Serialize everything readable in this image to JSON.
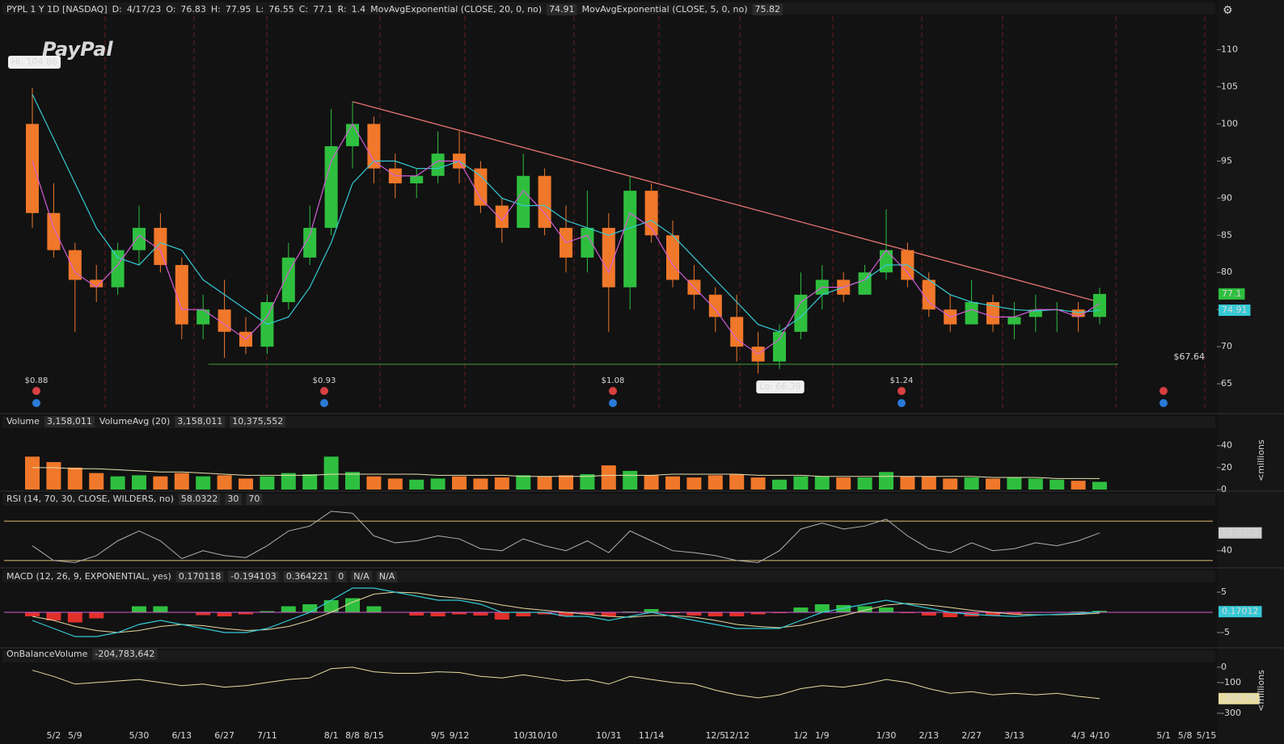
{
  "header": {
    "symbol": "PYPL 1 Y 1D [NASDAQ]",
    "quote": [
      {
        "label": "D:",
        "value": "4/17/23"
      },
      {
        "label": "O:",
        "value": "76.83"
      },
      {
        "label": "H:",
        "value": "77.95"
      },
      {
        "label": "L:",
        "value": "76.55"
      },
      {
        "label": "C:",
        "value": "77.1"
      },
      {
        "label": "R:",
        "value": "1.4"
      }
    ],
    "studies": [
      {
        "name": "MovAvgExponential (CLOSE, 20, 0, no)",
        "value": "74.91"
      },
      {
        "name": "MovAvgExponential (CLOSE, 5, 0, no)",
        "value": "75.82"
      }
    ]
  },
  "chart_data": [
    {
      "type": "candlestick",
      "watermark": "PayPal",
      "categories": [
        null,
        "5/2",
        "5/9",
        null,
        null,
        "5/30",
        null,
        "6/13",
        null,
        "6/27",
        null,
        "7/11",
        null,
        null,
        "8/1",
        "8/8",
        "8/15",
        null,
        null,
        "9/5",
        "9/12",
        null,
        null,
        "10/3",
        "10/10",
        null,
        null,
        "10/31",
        null,
        "11/14",
        null,
        null,
        "12/5",
        "12/12",
        null,
        null,
        "1/2",
        "1/9",
        null,
        null,
        "1/30",
        null,
        "2/13",
        null,
        "2/27",
        null,
        "3/13",
        null,
        null,
        "4/3",
        "4/10",
        null,
        null,
        "5/1",
        "5/8",
        "5/15"
      ],
      "open": [
        100,
        88,
        83,
        79,
        78,
        83,
        86,
        81,
        73,
        75,
        72,
        70,
        76,
        82,
        86,
        97,
        100,
        94,
        92,
        93,
        96,
        94,
        89,
        86,
        93,
        86,
        82,
        86,
        78,
        91,
        85,
        79,
        77,
        74,
        70,
        68,
        72,
        77,
        79,
        77,
        80,
        83,
        79,
        75,
        73,
        76,
        73,
        74,
        75,
        75,
        74,
        null,
        null,
        null,
        null,
        null
      ],
      "high": [
        104.86,
        92,
        84,
        81,
        84,
        89,
        88,
        82,
        77,
        79,
        74,
        77,
        84,
        89,
        102,
        103,
        101,
        96,
        94,
        99,
        99,
        95,
        90,
        96,
        94,
        89,
        91,
        88,
        93,
        92,
        87,
        81,
        78,
        77,
        72,
        73,
        80,
        81,
        80,
        81,
        88.5,
        84,
        80,
        77,
        79,
        77,
        76,
        77,
        76,
        76,
        77.95,
        null,
        null,
        null,
        null,
        null
      ],
      "low": [
        86,
        82,
        72,
        76,
        77,
        81,
        80,
        71,
        71,
        68.5,
        69,
        69,
        75,
        81,
        85,
        94,
        92,
        90,
        90,
        92,
        92,
        88,
        84,
        86,
        85,
        80,
        80,
        72,
        75,
        84,
        78,
        75,
        72,
        68,
        66.39,
        67,
        71,
        75,
        76,
        77,
        79,
        78,
        74,
        72,
        73,
        72,
        71,
        72,
        72,
        72,
        73,
        null,
        null,
        null,
        null,
        null
      ],
      "close": [
        88,
        83,
        79,
        78,
        83,
        86,
        81,
        73,
        75,
        72,
        70,
        76,
        82,
        86,
        97,
        100,
        94,
        92,
        93,
        96,
        94,
        89,
        86,
        93,
        86,
        82,
        86,
        78,
        91,
        85,
        79,
        77,
        74,
        70,
        68,
        72,
        77,
        79,
        77,
        80,
        83,
        79,
        75,
        73,
        76,
        73,
        74,
        75,
        75,
        74,
        77.1,
        null,
        null,
        null,
        null,
        null
      ],
      "up_color": "#2fbf3f",
      "down_color": "#f0782a",
      "series": [
        {
          "color": "#36c9d6",
          "values": [
            104,
            98,
            92,
            86,
            82,
            81,
            84,
            83,
            79,
            77,
            75,
            73,
            74,
            78,
            84,
            92,
            95,
            95,
            94,
            94,
            95,
            93,
            90,
            89,
            89,
            87,
            86,
            85,
            86,
            87,
            85,
            82,
            79,
            76,
            73,
            72,
            74,
            77,
            78,
            79,
            81,
            81,
            79,
            77,
            76,
            75.5,
            75,
            74.8,
            75,
            74.6,
            74.91,
            null,
            null,
            null,
            null,
            null
          ]
        },
        {
          "color": "#d35ed6",
          "values": [
            95,
            86,
            80,
            78,
            81,
            85,
            83,
            75,
            75,
            73,
            71,
            74,
            80,
            85,
            95,
            100,
            95,
            93,
            93,
            95,
            95,
            90,
            87,
            91,
            88,
            84,
            85,
            80,
            88,
            86,
            81,
            78,
            75,
            71,
            69,
            71,
            76,
            78,
            78,
            79,
            83,
            80,
            76,
            74,
            75,
            74,
            74,
            75,
            75,
            74,
            75.82,
            null,
            null,
            null,
            null,
            null
          ]
        }
      ],
      "ylim": [
        61.2,
        114.3
      ],
      "yticks": [
        65,
        70,
        75,
        80,
        85,
        90,
        95,
        100,
        105,
        110
      ],
      "hi_label": "Hi: 104.86",
      "lo_label": "Lo: 66.39",
      "support": {
        "value": 67.64,
        "label": "$67.64",
        "from": "6/27"
      },
      "trendline": {
        "from": "8/8",
        "to": "4/10",
        "values": [
          103,
          76
        ]
      },
      "dividends": [
        "$0.88",
        "$0.93",
        "$1.08",
        "$1.24"
      ]
    },
    {
      "type": "bar",
      "header": [
        "Volume",
        "3,158,011",
        "VolumeAvg (20)",
        "3,158,011",
        "10,375,552"
      ],
      "axis_label": "<millions",
      "values": [
        30,
        25,
        20,
        15,
        12,
        13,
        12,
        15,
        12,
        13,
        10,
        12,
        15,
        14,
        30,
        16,
        12,
        10,
        9,
        10,
        12,
        10,
        11,
        13,
        12,
        13,
        14,
        22,
        17,
        13,
        12,
        11,
        13,
        14,
        11,
        9,
        12,
        12,
        11,
        11,
        16,
        12,
        12,
        10,
        11,
        10,
        11,
        10,
        9,
        8,
        7,
        null,
        null,
        null,
        null,
        null
      ],
      "average": [
        20,
        20,
        19,
        19,
        18,
        17,
        16,
        16,
        15,
        14,
        13,
        13,
        13,
        13,
        14,
        14,
        14,
        14,
        14,
        13,
        13,
        13,
        13,
        12,
        12,
        12,
        12,
        13,
        13,
        13,
        14,
        14,
        14,
        14,
        13,
        13,
        13,
        12,
        12,
        12,
        12,
        12,
        12,
        12,
        12,
        11,
        11,
        11,
        10,
        10,
        10,
        null,
        null,
        null,
        null,
        null
      ],
      "average_color": "#e8e0b0",
      "ylim": [
        0,
        67
      ],
      "yticks": [
        0,
        20,
        40
      ]
    },
    {
      "type": "line",
      "header": [
        "RSI (14, 70, 30, CLOSE, WILDERS, no)",
        "58.0322"
      ],
      "levels": [
        {
          "value": 30,
          "label": "30"
        },
        {
          "value": 70,
          "label": "70"
        }
      ],
      "values": [
        45,
        30,
        28,
        35,
        50,
        60,
        50,
        32,
        40,
        35,
        33,
        45,
        60,
        65,
        80,
        78,
        55,
        48,
        50,
        55,
        52,
        42,
        40,
        52,
        45,
        40,
        50,
        38,
        60,
        50,
        40,
        38,
        35,
        30,
        28,
        40,
        62,
        68,
        62,
        65,
        72,
        55,
        42,
        38,
        48,
        40,
        42,
        48,
        45,
        50,
        58.03,
        null,
        null,
        null,
        null,
        null
      ],
      "color": "#b0b0b0",
      "level_color": "#e0c070",
      "ylim": [
        25,
        84
      ],
      "yticks": [
        40
      ]
    },
    {
      "type": "macd",
      "header": [
        "MACD (12, 26, 9, EXPONENTIAL, yes)",
        "0.170118",
        "-0.194103",
        "0.364221",
        "0",
        "N/A",
        "N/A"
      ],
      "last_label": "0.17012",
      "macd": [
        -2,
        -4,
        -6,
        -6,
        -5,
        -3,
        -2,
        -3,
        -4,
        -5,
        -5,
        -4,
        -2,
        0,
        3,
        6,
        6,
        5,
        4,
        3,
        3,
        2,
        0,
        0,
        0,
        -1,
        -1,
        -2,
        -1,
        0,
        -1,
        -2,
        -3,
        -4,
        -4,
        -4,
        -2,
        0,
        1,
        2,
        3,
        2,
        1,
        0,
        -0.5,
        -0.8,
        -1,
        -0.7,
        -0.5,
        -0.3,
        0.17,
        null,
        null,
        null,
        null,
        null
      ],
      "signal": [
        -1,
        -2,
        -3.5,
        -4.5,
        -5,
        -4.5,
        -3.5,
        -3,
        -3.3,
        -4,
        -4.5,
        -4.3,
        -3.5,
        -2,
        0,
        2.5,
        4.5,
        5,
        4.8,
        4,
        3.5,
        2.8,
        1.8,
        1,
        0.5,
        0,
        -0.5,
        -1,
        -1.2,
        -0.8,
        -0.8,
        -1.2,
        -2,
        -3,
        -3.5,
        -3.8,
        -3.2,
        -2,
        -0.8,
        0.5,
        1.8,
        2.2,
        1.8,
        1.2,
        0.5,
        0,
        -0.5,
        -0.6,
        -0.6,
        -0.5,
        -0.19,
        null,
        null,
        null,
        null,
        null
      ],
      "histogram": [
        -1,
        -2,
        -2.5,
        -1.5,
        0,
        1.5,
        1.5,
        0,
        -0.7,
        -1,
        -0.5,
        0.3,
        1.5,
        2,
        3,
        3.5,
        1.5,
        0,
        -0.8,
        -1,
        -0.5,
        -0.8,
        -1.8,
        -1,
        -0.5,
        -1,
        -0.5,
        -1,
        0.2,
        0.8,
        -0.2,
        -0.8,
        -1,
        -1,
        -0.5,
        -0.2,
        1.2,
        2,
        1.8,
        1.5,
        1.2,
        -0.2,
        -0.8,
        -1.2,
        -1,
        -0.8,
        -0.5,
        -0.1,
        0.1,
        0.2,
        0.36,
        null,
        null,
        null,
        null,
        null
      ],
      "macd_color": "#36c9d6",
      "signal_color": "#e8d8a0",
      "pos_color": "#2fbf3f",
      "neg_color": "#e0302a",
      "zero_color": "#d35ed6",
      "ylim": [
        -8.4,
        10.2
      ],
      "yticks": [
        5,
        -5
      ]
    },
    {
      "type": "line",
      "header": [
        "OnBalanceVolume",
        "-204,783,642"
      ],
      "axis_label": "<millions",
      "last_label": "-204.78",
      "values": [
        -20,
        -60,
        -110,
        -100,
        -90,
        -80,
        -100,
        -120,
        -110,
        -130,
        -120,
        -100,
        -80,
        -70,
        -10,
        0,
        -30,
        -40,
        -40,
        -30,
        -35,
        -60,
        -70,
        -50,
        -70,
        -90,
        -80,
        -110,
        -60,
        -80,
        -100,
        -110,
        -150,
        -180,
        -200,
        -180,
        -140,
        -120,
        -130,
        -110,
        -80,
        -100,
        -140,
        -170,
        -160,
        -180,
        -170,
        -180,
        -170,
        -190,
        -204.78,
        null,
        null,
        null,
        null,
        null
      ],
      "color": "#e8dca0",
      "ylim": [
        -390,
        31
      ],
      "yticks": [
        0,
        -100,
        -300
      ]
    }
  ]
}
